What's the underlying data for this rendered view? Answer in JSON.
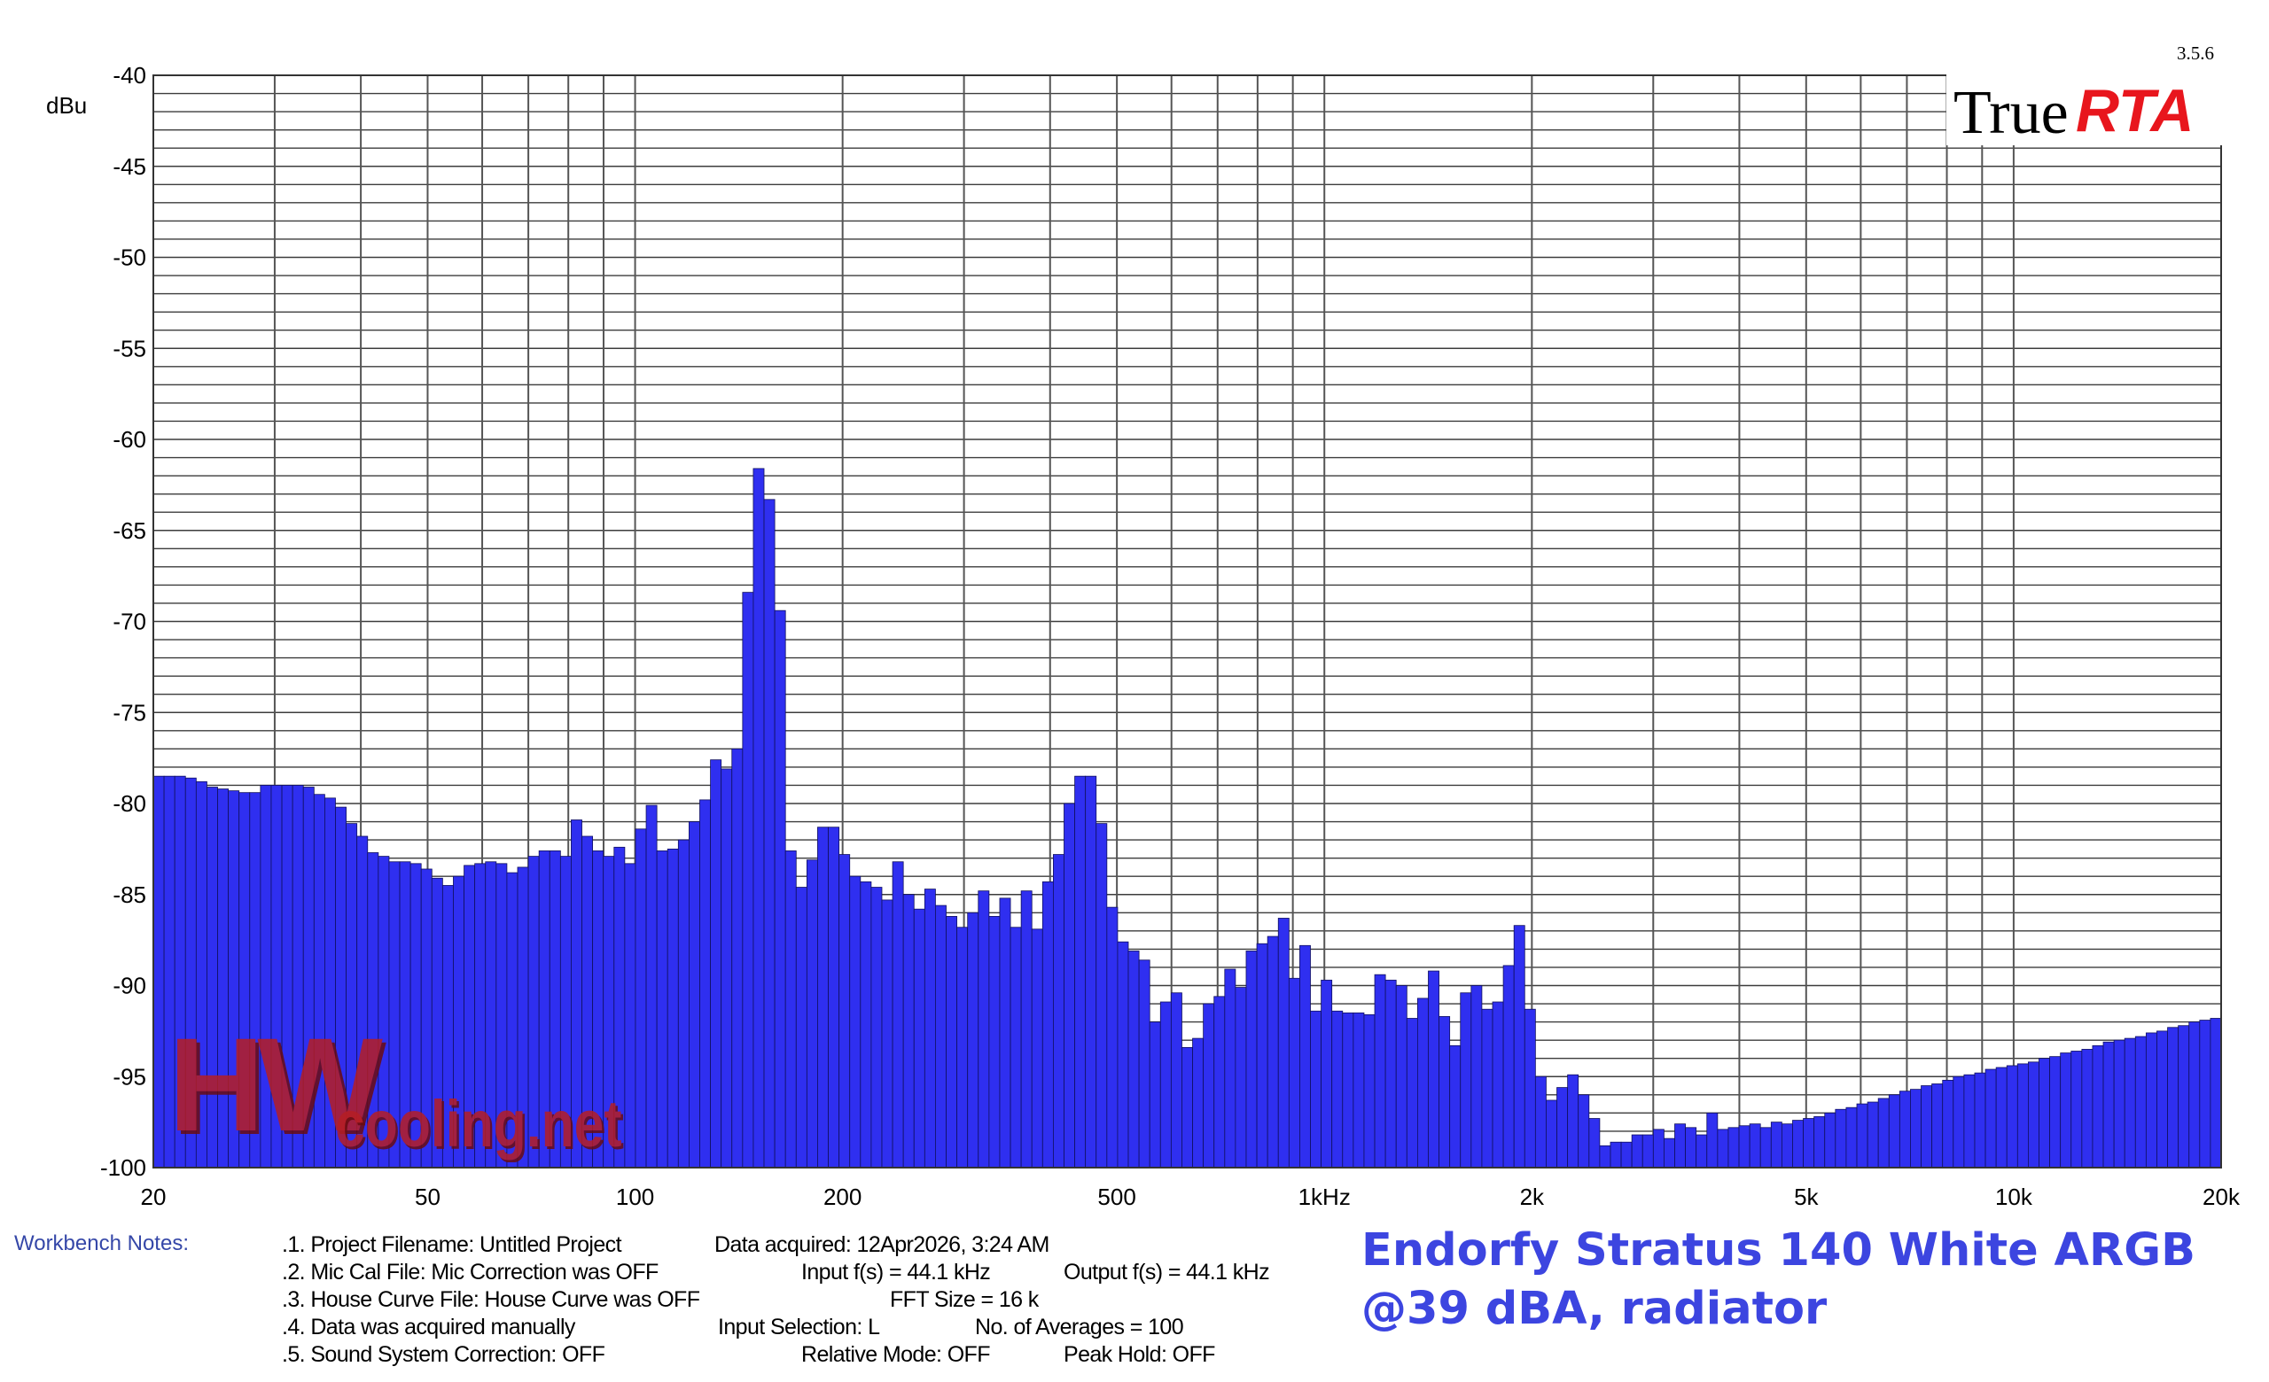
{
  "chart_data": {
    "type": "bar",
    "title": "",
    "ylabel": "dBu",
    "xlabel": "",
    "x_scale": "log",
    "xlim": [
      20,
      20000
    ],
    "ylim": [
      -100,
      -40
    ],
    "y_ticks": [
      -40,
      -45,
      -50,
      -55,
      -60,
      -65,
      -70,
      -75,
      -80,
      -85,
      -90,
      -95,
      -100
    ],
    "y_tick_labels": [
      "-40",
      "-45",
      "-50",
      "-55",
      "-60",
      "-65",
      "-70",
      "-75",
      "-80",
      "-85",
      "-90",
      "-95",
      "-100"
    ],
    "x_ticks": [
      20,
      50,
      100,
      200,
      500,
      1000,
      2000,
      5000,
      10000,
      20000
    ],
    "x_tick_labels": [
      "20",
      "50",
      "100",
      "200",
      "500",
      "1kHz",
      "2k",
      "5k",
      "10k",
      "20k"
    ],
    "grid": true,
    "bar_color": "#2f2ff0",
    "bands_per_octave": 24,
    "values": [
      -78.5,
      -78.5,
      -78.5,
      -78.6,
      -78.8,
      -79.1,
      -79.2,
      -79.3,
      -79.4,
      -79.4,
      -79.0,
      -79.0,
      -79.0,
      -79.0,
      -79.1,
      -79.5,
      -79.7,
      -80.2,
      -81.1,
      -81.8,
      -82.7,
      -82.9,
      -83.2,
      -83.2,
      -83.3,
      -83.6,
      -84.1,
      -84.5,
      -84.0,
      -83.4,
      -83.3,
      -83.2,
      -83.3,
      -83.8,
      -83.5,
      -82.9,
      -82.6,
      -82.6,
      -82.9,
      -80.9,
      -81.8,
      -82.6,
      -82.9,
      -82.4,
      -83.3,
      -81.4,
      -80.1,
      -82.6,
      -82.5,
      -82.0,
      -81.0,
      -79.8,
      -77.6,
      -78.1,
      -77.0,
      -68.4,
      -61.6,
      -63.3,
      -69.4,
      -82.6,
      -84.6,
      -83.1,
      -81.3,
      -81.3,
      -82.8,
      -84.0,
      -84.3,
      -84.6,
      -85.3,
      -83.2,
      -85.0,
      -85.8,
      -84.7,
      -85.6,
      -86.2,
      -86.8,
      -86.0,
      -84.8,
      -86.2,
      -85.2,
      -86.8,
      -84.8,
      -86.9,
      -84.3,
      -82.8,
      -80.0,
      -78.5,
      -78.5,
      -81.1,
      -85.7,
      -87.6,
      -88.1,
      -88.6,
      -92.0,
      -90.9,
      -90.4,
      -93.4,
      -92.9,
      -91.0,
      -90.6,
      -89.1,
      -90.1,
      -88.1,
      -87.7,
      -87.3,
      -86.3,
      -89.6,
      -87.8,
      -91.4,
      -89.7,
      -91.4,
      -91.5,
      -91.5,
      -91.6,
      -89.4,
      -89.7,
      -90.0,
      -91.8,
      -90.7,
      -89.2,
      -91.7,
      -93.3,
      -90.4,
      -90.0,
      -91.3,
      -90.9,
      -88.9,
      -86.7,
      -91.3,
      -95.0,
      -96.3,
      -95.6,
      -94.9,
      -96.0,
      -97.3,
      -98.8,
      -98.6,
      -98.6,
      -98.2,
      -98.2,
      -97.9,
      -98.4,
      -97.6,
      -97.8,
      -98.2,
      -97.0,
      -97.9,
      -97.8,
      -97.7,
      -97.6,
      -97.8,
      -97.5,
      -97.6,
      -97.4,
      -97.3,
      -97.2,
      -97.0,
      -96.8,
      -96.7,
      -96.5,
      -96.4,
      -96.2,
      -96.0,
      -95.8,
      -95.7,
      -95.5,
      -95.4,
      -95.2,
      -95.0,
      -94.9,
      -94.8,
      -94.6,
      -94.5,
      -94.4,
      -94.3,
      -94.2,
      -94.0,
      -93.9,
      -93.7,
      -93.6,
      -93.5,
      -93.3,
      -93.1,
      -93.0,
      -92.9,
      -92.8,
      -92.6,
      -92.5,
      -92.3,
      -92.2,
      -92.0,
      -91.9,
      -91.8
    ]
  },
  "watermark": {
    "hw": "HW",
    "site": "cooling.net"
  },
  "brand": {
    "true": "True",
    "rta": "RTA",
    "version": "3.5.6"
  },
  "notes": {
    "label": "Workbench Notes:",
    "lines": [
      ".1. Project Filename: Untitled Project",
      ".2. Mic Cal File: Mic Correction was OFF",
      ".3. House Curve File: House Curve was OFF",
      ".4. Data was acquired manually",
      ".5. Sound System Correction: OFF"
    ],
    "acquired": "Data acquired: 12Apr2026, 3:24 AM",
    "input_fs": "Input f(s) = 44.1 kHz",
    "output_fs": "Output f(s) = 44.1 kHz",
    "fft_size": "FFT Size = 16 k",
    "input_selection": "Input Selection: L",
    "averages": "No. of Averages = 100",
    "relative_mode": "Relative Mode:  OFF",
    "peak_hold": "Peak Hold: OFF"
  },
  "caption": {
    "line1": "Endorfy Stratus 140 White ARGB",
    "line2": "@39 dBA, radiator"
  }
}
